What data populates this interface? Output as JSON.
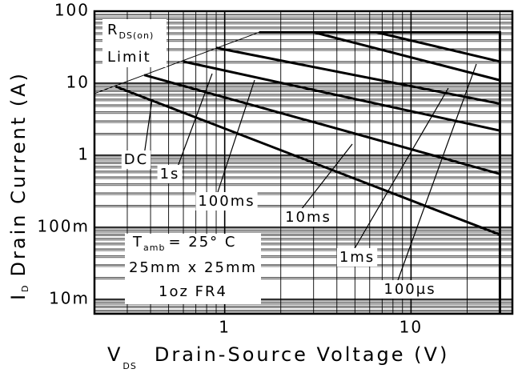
{
  "chart_data": {
    "type": "line",
    "xscale": "log",
    "yscale": "log",
    "xlim": [
      0.2,
      35
    ],
    "ylim": [
      0.0063,
      100
    ],
    "xticks": [
      1,
      10
    ],
    "yticks": [
      100,
      10,
      1,
      {
        "value": 0.1,
        "label": "100m"
      },
      {
        "value": 0.01,
        "label": "10m"
      }
    ],
    "grid": true,
    "color": "#000000",
    "y_label": {
      "symbol": "I",
      "subscript": "D",
      "text": "Drain Current (A)"
    },
    "x_label": {
      "symbol": "V",
      "subscript": "DS",
      "text": "Drain-Source Voltage (V)"
    },
    "series": [
      {
        "x": [
          0.2,
          1.53
        ],
        "values": [
          7.2,
          51
        ],
        "width": 1
      },
      {
        "x": [
          1.53,
          30,
          30
        ],
        "values": [
          51,
          51,
          0.0063
        ],
        "width": 3
      },
      {
        "x": [
          0.26,
          30
        ],
        "values": [
          9,
          0.079
        ],
        "width": 3
      },
      {
        "x": [
          0.37,
          30
        ],
        "values": [
          13,
          0.55
        ],
        "width": 3
      },
      {
        "x": [
          0.6,
          30
        ],
        "values": [
          20,
          2.2
        ],
        "width": 3
      },
      {
        "x": [
          0.9,
          30
        ],
        "values": [
          31,
          5.2
        ],
        "width": 3
      },
      {
        "x": [
          3,
          30
        ],
        "values": [
          51,
          11
        ],
        "width": 3
      },
      {
        "x": [
          6.5,
          30
        ],
        "values": [
          51,
          20
        ],
        "width": 3
      }
    ],
    "annotations": [
      "DC",
      "1s",
      "100ms",
      "10ms",
      "1ms",
      "100µs"
    ],
    "rds_label": {
      "symbol": "R",
      "subscript": "DS(on)",
      "text": "Limit"
    },
    "conditions": {
      "symbol": "T",
      "subscript": "amb",
      "temp": "= 25° C",
      "size": "25mm x 25mm",
      "board": "1oz FR4"
    }
  }
}
